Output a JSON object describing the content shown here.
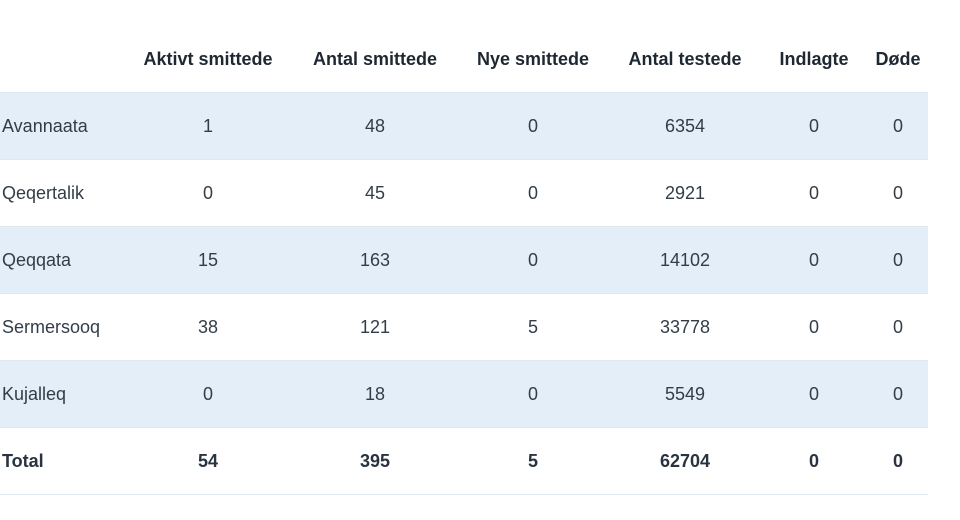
{
  "table": {
    "headers": [
      "",
      "Aktivt smittede",
      "Antal smittede",
      "Nye smittede",
      "Antal testede",
      "Indlagte",
      "Døde"
    ],
    "rows": [
      {
        "region": "Avannaata",
        "cells": [
          "1",
          "48",
          "0",
          "6354",
          "0",
          "0"
        ]
      },
      {
        "region": "Qeqertalik",
        "cells": [
          "0",
          "45",
          "0",
          "2921",
          "0",
          "0"
        ]
      },
      {
        "region": "Qeqqata",
        "cells": [
          "15",
          "163",
          "0",
          "14102",
          "0",
          "0"
        ]
      },
      {
        "region": "Sermersooq",
        "cells": [
          "38",
          "121",
          "5",
          "33778",
          "0",
          "0"
        ]
      },
      {
        "region": "Kujalleq",
        "cells": [
          "0",
          "18",
          "0",
          "5549",
          "0",
          "0"
        ]
      }
    ],
    "total": {
      "region": "Total",
      "cells": [
        "54",
        "395",
        "5",
        "62704",
        "0",
        "0"
      ]
    }
  },
  "colors": {
    "stripe": "#e3eef9",
    "divider": "#dfe7ef",
    "text": "#2b3440"
  }
}
